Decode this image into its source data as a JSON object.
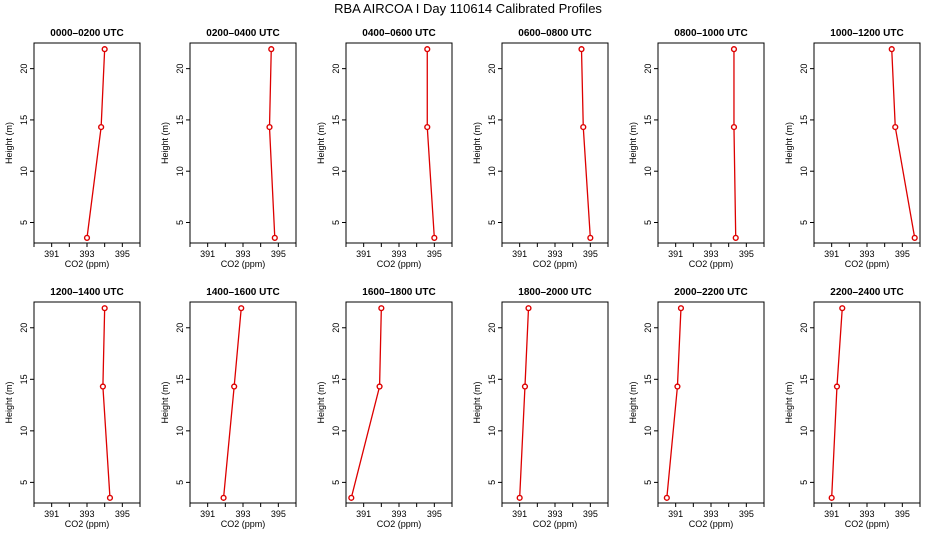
{
  "page": {
    "title": "RBA AIRCOA I  Day 110614  Calibrated Profiles"
  },
  "chart_data": [
    {
      "type": "line",
      "title": "0000–0200 UTC",
      "xlabel": "CO2 (ppm)",
      "ylabel": "Height (m)",
      "xlim": [
        390,
        396
      ],
      "ylim": [
        3,
        22.5
      ],
      "x_ticks": [
        391,
        393,
        395
      ],
      "y_ticks": [
        5,
        10,
        15,
        20
      ],
      "series": [
        {
          "x": [
            393.0,
            393.8,
            394.0
          ],
          "y": [
            3.5,
            14.3,
            21.9
          ]
        }
      ]
    },
    {
      "type": "line",
      "title": "0200–0400 UTC",
      "xlabel": "CO2 (ppm)",
      "ylabel": "Height (m)",
      "xlim": [
        390,
        396
      ],
      "ylim": [
        3,
        22.5
      ],
      "x_ticks": [
        391,
        393,
        395
      ],
      "y_ticks": [
        5,
        10,
        15,
        20
      ],
      "series": [
        {
          "x": [
            394.8,
            394.5,
            394.6
          ],
          "y": [
            3.5,
            14.3,
            21.9
          ]
        }
      ]
    },
    {
      "type": "line",
      "title": "0400–0600 UTC",
      "xlabel": "CO2 (ppm)",
      "ylabel": "Height (m)",
      "xlim": [
        390,
        396
      ],
      "ylim": [
        3,
        22.5
      ],
      "x_ticks": [
        391,
        393,
        395
      ],
      "y_ticks": [
        5,
        10,
        15,
        20
      ],
      "series": [
        {
          "x": [
            395.0,
            394.6,
            394.6
          ],
          "y": [
            3.5,
            14.3,
            21.9
          ]
        }
      ]
    },
    {
      "type": "line",
      "title": "0600–0800 UTC",
      "xlabel": "CO2 (ppm)",
      "ylabel": "Height (m)",
      "xlim": [
        390,
        396
      ],
      "ylim": [
        3,
        22.5
      ],
      "x_ticks": [
        391,
        393,
        395
      ],
      "y_ticks": [
        5,
        10,
        15,
        20
      ],
      "series": [
        {
          "x": [
            395.0,
            394.6,
            394.5
          ],
          "y": [
            3.5,
            14.3,
            21.9
          ]
        }
      ]
    },
    {
      "type": "line",
      "title": "0800–1000 UTC",
      "xlabel": "CO2 (ppm)",
      "ylabel": "Height (m)",
      "xlim": [
        390,
        396
      ],
      "ylim": [
        3,
        22.5
      ],
      "x_ticks": [
        391,
        393,
        395
      ],
      "y_ticks": [
        5,
        10,
        15,
        20
      ],
      "series": [
        {
          "x": [
            394.4,
            394.3,
            394.3
          ],
          "y": [
            3.5,
            14.3,
            21.9
          ]
        }
      ]
    },
    {
      "type": "line",
      "title": "1000–1200 UTC",
      "xlabel": "CO2 (ppm)",
      "ylabel": "Height (m)",
      "xlim": [
        390,
        396
      ],
      "ylim": [
        3,
        22.5
      ],
      "x_ticks": [
        391,
        393,
        395
      ],
      "y_ticks": [
        5,
        10,
        15,
        20
      ],
      "series": [
        {
          "x": [
            395.7,
            394.6,
            394.4
          ],
          "y": [
            3.5,
            14.3,
            21.9
          ]
        }
      ]
    },
    {
      "type": "line",
      "title": "1200–1400 UTC",
      "xlabel": "CO2 (ppm)",
      "ylabel": "Height (m)",
      "xlim": [
        390,
        396
      ],
      "ylim": [
        3,
        22.5
      ],
      "x_ticks": [
        391,
        393,
        395
      ],
      "y_ticks": [
        5,
        10,
        15,
        20
      ],
      "series": [
        {
          "x": [
            394.3,
            393.9,
            394.0
          ],
          "y": [
            3.5,
            14.3,
            21.9
          ]
        }
      ]
    },
    {
      "type": "line",
      "title": "1400–1600 UTC",
      "xlabel": "CO2 (ppm)",
      "ylabel": "Height (m)",
      "xlim": [
        390,
        396
      ],
      "ylim": [
        3,
        22.5
      ],
      "x_ticks": [
        391,
        393,
        395
      ],
      "y_ticks": [
        5,
        10,
        15,
        20
      ],
      "series": [
        {
          "x": [
            391.9,
            392.5,
            392.9
          ],
          "y": [
            3.5,
            14.3,
            21.9
          ]
        }
      ]
    },
    {
      "type": "line",
      "title": "1600–1800 UTC",
      "xlabel": "CO2 (ppm)",
      "ylabel": "Height (m)",
      "xlim": [
        390,
        396
      ],
      "ylim": [
        3,
        22.5
      ],
      "x_ticks": [
        391,
        393,
        395
      ],
      "y_ticks": [
        5,
        10,
        15,
        20
      ],
      "series": [
        {
          "x": [
            390.3,
            391.9,
            392.0
          ],
          "y": [
            3.5,
            14.3,
            21.9
          ]
        }
      ]
    },
    {
      "type": "line",
      "title": "1800–2000 UTC",
      "xlabel": "CO2 (ppm)",
      "ylabel": "Height (m)",
      "xlim": [
        390,
        396
      ],
      "ylim": [
        3,
        22.5
      ],
      "x_ticks": [
        391,
        393,
        395
      ],
      "y_ticks": [
        5,
        10,
        15,
        20
      ],
      "series": [
        {
          "x": [
            391.0,
            391.3,
            391.5
          ],
          "y": [
            3.5,
            14.3,
            21.9
          ]
        }
      ]
    },
    {
      "type": "line",
      "title": "2000–2200 UTC",
      "xlabel": "CO2 (ppm)",
      "ylabel": "Height (m)",
      "xlim": [
        390,
        396
      ],
      "ylim": [
        3,
        22.5
      ],
      "x_ticks": [
        391,
        393,
        395
      ],
      "y_ticks": [
        5,
        10,
        15,
        20
      ],
      "series": [
        {
          "x": [
            390.5,
            391.1,
            391.3
          ],
          "y": [
            3.5,
            14.3,
            21.9
          ]
        }
      ]
    },
    {
      "type": "line",
      "title": "2200–2400 UTC",
      "xlabel": "CO2 (ppm)",
      "ylabel": "Height (m)",
      "xlim": [
        390,
        396
      ],
      "ylim": [
        3,
        22.5
      ],
      "x_ticks": [
        391,
        393,
        395
      ],
      "y_ticks": [
        5,
        10,
        15,
        20
      ],
      "series": [
        {
          "x": [
            391.0,
            391.3,
            391.6
          ],
          "y": [
            3.5,
            14.3,
            21.9
          ]
        }
      ]
    }
  ],
  "style": {
    "line_color": "#dd0000",
    "axis_color": "#000000"
  }
}
